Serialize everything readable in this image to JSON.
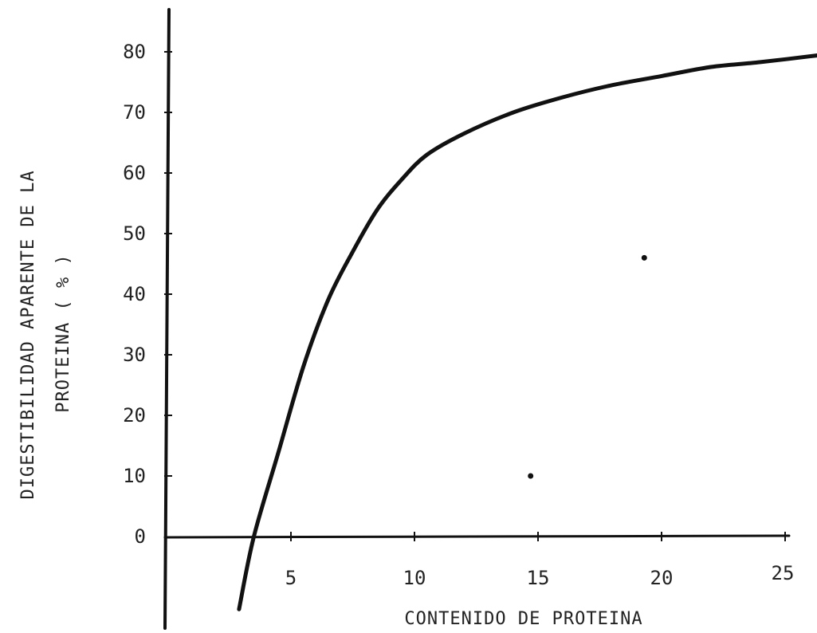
{
  "chart_data": {
    "type": "line",
    "title": "",
    "xlabel": "CONTENIDO DE PROTEINA",
    "ylabel_line1": "DIGESTIBILIDAD APARENTE DE LA",
    "ylabel_line2": "PROTEINA ( % )",
    "xlim": [
      0,
      25
    ],
    "ylim": [
      0,
      80
    ],
    "x_ticks": [
      5,
      10,
      15,
      20,
      25
    ],
    "y_ticks": [
      0,
      10,
      20,
      30,
      40,
      50,
      60,
      70,
      80
    ],
    "grid": false,
    "series": [
      {
        "x": [
          2.9,
          3.5,
          4.5,
          5.5,
          6.5,
          7.5,
          8.5,
          9.5,
          10.5,
          12.0,
          14.0,
          16.0,
          18.0,
          20.0,
          22.0,
          24.0,
          26.5
        ],
        "y": [
          -12.0,
          0.0,
          14.0,
          28.0,
          39.0,
          47.0,
          54.0,
          59.0,
          63.0,
          66.5,
          70.0,
          72.5,
          74.5,
          76.0,
          77.5,
          78.3,
          79.5
        ]
      }
    ],
    "stray_points": [
      {
        "x": 14.7,
        "y": 10.0
      },
      {
        "x": 19.3,
        "y": 46.0
      }
    ]
  }
}
